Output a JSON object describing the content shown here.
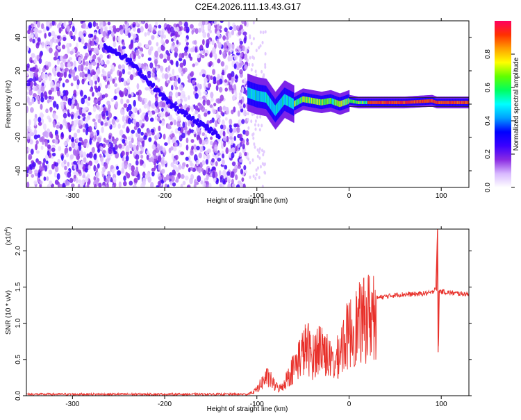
{
  "title": "C2E4.2026.111.13.43.G17",
  "chart_data": [
    {
      "type": "heatmap",
      "xlabel": "Height of straight line (km)",
      "ylabel": "Frequency (Hz)",
      "xlim": [
        -350,
        130
      ],
      "ylim": [
        -50,
        50
      ],
      "xticks": [
        -300,
        -200,
        -100,
        0,
        100
      ],
      "yticks": [
        -40,
        -20,
        0,
        20,
        40
      ],
      "colorbar": {
        "label": "Normalized spectral amplitude",
        "range": [
          0,
          1
        ],
        "ticks": [
          "0.0",
          "0.2",
          "0.4",
          "0.6",
          "0.8"
        ],
        "colors": [
          "#ffffff",
          "#d8b8ff",
          "#8a2be2",
          "#3a00ff",
          "#0000ff",
          "#00a0ff",
          "#00ffff",
          "#00ff60",
          "#60ff00",
          "#ffff00",
          "#ffa000",
          "#ff3000",
          "#ff0060"
        ]
      },
      "features": {
        "noise_region_x": [
          -350,
          -110
        ],
        "diagonal_trace": [
          [
            -265,
            35
          ],
          [
            -240,
            27
          ],
          [
            -215,
            12
          ],
          [
            -190,
            -2
          ],
          [
            -165,
            -10
          ],
          [
            -140,
            -20
          ]
        ],
        "signal_track": [
          [
            -110,
            7
          ],
          [
            -100,
            5
          ],
          [
            -90,
            4
          ],
          [
            -80,
            -4
          ],
          [
            -70,
            3
          ],
          [
            -60,
            0
          ],
          [
            -50,
            3
          ],
          [
            -40,
            2
          ],
          [
            -30,
            1
          ],
          [
            -20,
            2
          ],
          [
            -10,
            0
          ],
          [
            0,
            2
          ],
          [
            10,
            1
          ],
          [
            30,
            1
          ],
          [
            60,
            1
          ],
          [
            90,
            2
          ],
          [
            95,
            1
          ],
          [
            130,
            1
          ]
        ]
      }
    },
    {
      "type": "line",
      "xlabel": "Height of straight line (km)",
      "ylabel": "SNR (10 * v/v)",
      "multiplier_label": "(x10",
      "multiplier_exp": "4",
      "multiplier_close": ")",
      "xlim": [
        -350,
        130
      ],
      "ylim": [
        0,
        2.3
      ],
      "xticks": [
        -300,
        -200,
        -100,
        0,
        100
      ],
      "yticks": [
        "0.0",
        "0.5",
        "1.0",
        "1.5",
        "2.0"
      ],
      "series": [
        {
          "color": "#e8302a",
          "x": [
            -350,
            -200,
            -110,
            -105,
            -100,
            -95,
            -90,
            -85,
            -80,
            -75,
            -70,
            -65,
            -60,
            -55,
            -50,
            -45,
            -40,
            -35,
            -30,
            -25,
            -20,
            -15,
            -10,
            -5,
            0,
            5,
            10,
            15,
            20,
            25,
            30,
            40,
            50,
            60,
            70,
            80,
            90,
            94,
            96,
            97,
            98,
            100,
            110,
            120,
            130
          ],
          "y": [
            0.02,
            0.02,
            0.02,
            0.05,
            0.1,
            0.2,
            0.3,
            0.25,
            0.15,
            0.12,
            0.2,
            0.35,
            0.45,
            0.6,
            0.7,
            0.8,
            0.6,
            0.75,
            0.8,
            0.7,
            0.55,
            0.5,
            0.75,
            0.9,
            1.0,
            1.1,
            1.15,
            1.2,
            1.28,
            1.32,
            1.35,
            1.37,
            1.39,
            1.4,
            1.4,
            1.41,
            1.42,
            1.5,
            2.3,
            0.6,
            1.45,
            1.44,
            1.42,
            1.41,
            1.4
          ]
        }
      ]
    }
  ]
}
